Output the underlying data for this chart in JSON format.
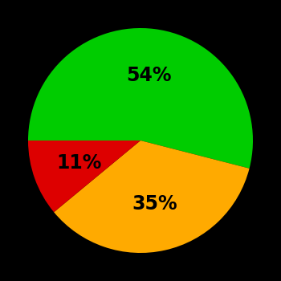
{
  "slices": [
    54,
    35,
    11
  ],
  "colors": [
    "#00cc00",
    "#ffaa00",
    "#dd0000"
  ],
  "labels": [
    "54%",
    "35%",
    "11%"
  ],
  "background_color": "#000000",
  "figsize": [
    3.5,
    3.5
  ],
  "dpi": 100
}
